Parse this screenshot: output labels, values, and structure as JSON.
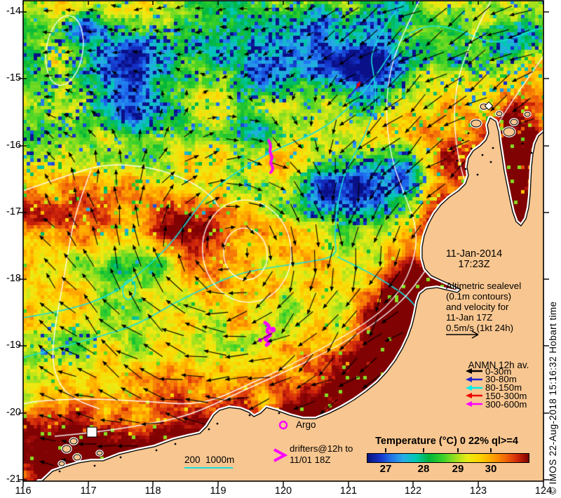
{
  "title_block": {
    "date": "11-Jan-2014",
    "time": "17:23Z"
  },
  "subtitle_lines": [
    "Altimetric sealevel",
    "(0.1m contours)",
    "and velocity for",
    "11-Jan 17Z",
    "0.5m/s (1kt 24h)"
  ],
  "anmn_legend": {
    "title": "ANMN 12h av.",
    "entries": [
      {
        "label": "0-30m",
        "color": "#000000"
      },
      {
        "label": "30-80m",
        "color": "#2222cc"
      },
      {
        "label": "80-150m",
        "color": "#00eeee"
      },
      {
        "label": "150-300m",
        "color": "#ee0000"
      },
      {
        "label": "300-600m",
        "color": "#ff00ff"
      }
    ]
  },
  "argo": {
    "label": "Argo",
    "color": "#ff00ff"
  },
  "drifters": {
    "line1": "drifters@12h to",
    "line2": "11/01 18Z",
    "color": "#ff00ff"
  },
  "depth_scale": {
    "label_200": "200",
    "label_1000": "1000m",
    "line_color": "#17dfdf"
  },
  "colorbar": {
    "title": "Temperature (°C) 0 22% ql>=4",
    "tick_labels": [
      "27",
      "28",
      "29",
      "30"
    ]
  },
  "credit": "© IMOS 22-Aug-2018 15:16:32 Hobart time",
  "axes": {
    "x_tick_labels": [
      "116",
      "117",
      "118",
      "119",
      "120",
      "121",
      "122",
      "123",
      "124"
    ],
    "y_tick_labels": [
      "-14",
      "-15",
      "-16",
      "-17",
      "-18",
      "-19",
      "-20",
      "-21"
    ]
  },
  "chart_data": {
    "type": "heatmap",
    "title": "Temperature (°C) 0 22% ql>=4",
    "timestamp": "11-Jan-2014 17:23Z",
    "x_ticks": [
      116,
      117,
      118,
      119,
      120,
      121,
      122,
      123,
      124
    ],
    "y_ticks": [
      -14,
      -15,
      -16,
      -17,
      -18,
      -19,
      -20,
      -21
    ],
    "x_range": [
      116,
      124
    ],
    "y_range": [
      -21,
      -13.8
    ],
    "colorbar": {
      "units": "°C",
      "ticks": [
        27,
        28,
        29,
        30
      ],
      "range_estimate": [
        26.5,
        31.1
      ]
    },
    "overlays": [
      {
        "name": "sea surface temperature pixels",
        "style": "color-coded heatmap"
      },
      {
        "name": "altimetric sealevel contours",
        "interval": "0.1m",
        "color": "white"
      },
      {
        "name": "altimetric velocity vectors",
        "reference": "0.5m/s (1kt 24h)",
        "color": "black"
      },
      {
        "name": "bathymetry contours",
        "depths": [
          "200",
          "1000m"
        ],
        "color": "cyan"
      },
      {
        "name": "ANMN 12h av. mooring currents",
        "depth_bins": [
          "0-30m",
          "30-80m",
          "80-150m",
          "150-300m",
          "300-600m"
        ],
        "bin_colors": [
          "black",
          "blue",
          "cyan",
          "red",
          "magenta"
        ]
      },
      {
        "name": "Argo float marker",
        "color": "magenta"
      },
      {
        "name": "drifters@12h to 11/01 18Z",
        "color": "magenta"
      }
    ]
  }
}
